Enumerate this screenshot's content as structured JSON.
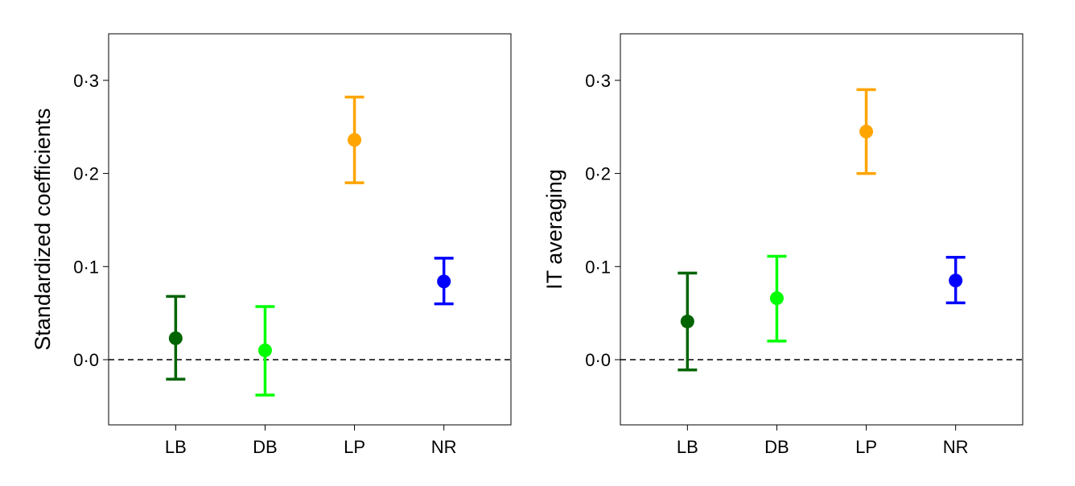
{
  "chart_data": [
    {
      "type": "errorbar",
      "title": "",
      "xlabel": "",
      "ylabel": "Standardized coefficients",
      "categories": [
        "LB",
        "DB",
        "LP",
        "NR"
      ],
      "values": [
        0.023,
        0.01,
        0.236,
        0.084
      ],
      "lower": [
        -0.021,
        -0.038,
        0.19,
        0.06
      ],
      "upper": [
        0.068,
        0.057,
        0.282,
        0.109
      ],
      "colors": [
        "#006400",
        "#00ff00",
        "#ffa500",
        "#0000ff"
      ],
      "ylim": [
        -0.07,
        0.35
      ],
      "yticks": [
        0.0,
        0.1,
        0.2,
        0.3
      ],
      "ytick_labels": [
        "0·0",
        "0·1",
        "0·2",
        "0·3"
      ],
      "reference_line": 0,
      "grid": false,
      "legend": "none"
    },
    {
      "type": "errorbar",
      "title": "",
      "xlabel": "",
      "ylabel": "IT averaging",
      "categories": [
        "LB",
        "DB",
        "LP",
        "NR"
      ],
      "values": [
        0.041,
        0.066,
        0.245,
        0.085
      ],
      "lower": [
        -0.011,
        0.02,
        0.2,
        0.061
      ],
      "upper": [
        0.093,
        0.111,
        0.29,
        0.11
      ],
      "colors": [
        "#006400",
        "#00ff00",
        "#ffa500",
        "#0000ff"
      ],
      "ylim": [
        -0.07,
        0.35
      ],
      "yticks": [
        0.0,
        0.1,
        0.2,
        0.3
      ],
      "ytick_labels": [
        "0·0",
        "0·1",
        "0·2",
        "0·3"
      ],
      "reference_line": 0,
      "grid": false,
      "legend": "none"
    }
  ]
}
